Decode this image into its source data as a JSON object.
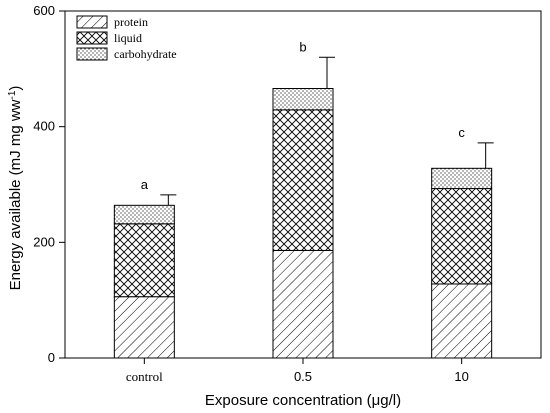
{
  "chart_data": {
    "type": "bar",
    "stacked": true,
    "categories": [
      "control",
      "0.5",
      "10"
    ],
    "series": [
      {
        "name": "protein",
        "values": [
          106,
          186,
          128
        ],
        "pattern": "diagonal-hatch"
      },
      {
        "name": "liquid",
        "values": [
          126,
          243,
          165
        ],
        "pattern": "cross-hatch"
      },
      {
        "name": "carbohydrate",
        "values": [
          32,
          37,
          35
        ],
        "pattern": "dots"
      }
    ],
    "error_bars": [
      18,
      54,
      44
    ],
    "significance_labels": [
      "a",
      "b",
      "c"
    ],
    "ylabel": "Energy available (mJ mg ww",
    "ylabel_superscript": "-1",
    "ylabel_suffix": ")",
    "xlabel": "Exposure concentration (μg/l)",
    "ylim": [
      0,
      600
    ],
    "yticks": [
      0,
      200,
      400,
      600
    ],
    "grid": false,
    "legend_position": "top-left",
    "colors": {
      "stroke": "#000000",
      "fill": "#ffffff"
    }
  }
}
